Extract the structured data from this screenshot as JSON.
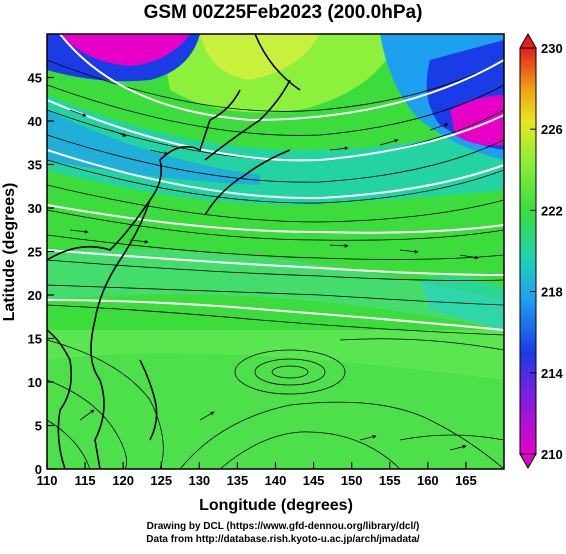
{
  "title": "GSM 00Z25Feb2023 (200.0hPa)",
  "xlabel": "Longitude (degrees)",
  "ylabel": "Latitude  (degrees)",
  "credits": {
    "line1": "Drawing by DCL (https://www.gfd-dennou.org/library/dcl/)",
    "line2": "Data from http://database.rish.kyoto-u.ac.jp/arch/jmadata/"
  },
  "map_data": {
    "x_ticks": [
      110,
      115,
      120,
      125,
      130,
      135,
      140,
      145,
      150,
      155,
      160,
      165
    ],
    "y_ticks": [
      0,
      5,
      10,
      15,
      20,
      25,
      30,
      35,
      40,
      45
    ],
    "xlim": [
      110,
      170
    ],
    "ylim": [
      0,
      50
    ],
    "colorbar": {
      "labels": [
        210,
        214,
        218,
        222,
        226,
        230
      ],
      "range": [
        210,
        230
      ]
    },
    "colors": {
      "magenta": "#e600c8",
      "blue": "#1a3ce6",
      "cyan": "#1ed2dc",
      "green": "#3cdc3c",
      "light_green": "#78f050",
      "yellow": "#e6e61e",
      "orange": "#f08c14",
      "red": "#e61e1e"
    }
  }
}
